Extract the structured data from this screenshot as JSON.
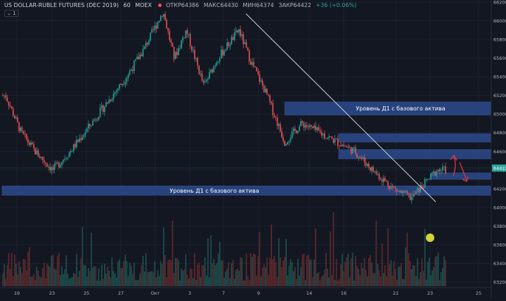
{
  "header": {
    "symbol": "US DOLLAR-RUBLE FUTURES (DEC 2019)",
    "interval": "60",
    "exchange": "MOEX",
    "open": "ОТКР64386",
    "high": "МАКС64430",
    "low": "МИН64374",
    "close": "ЗАКР64422",
    "change": "+36 (+0.06%)",
    "toggle": "1"
  },
  "price_axis": {
    "ticks": [
      "66200",
      "66000",
      "65800",
      "65600",
      "65400",
      "65200",
      "65000",
      "64800",
      "64600",
      "64400",
      "64200",
      "64000",
      "63800",
      "63600",
      "63400",
      "63200"
    ],
    "last_price": "64422",
    "last_price_color": "#26a69a"
  },
  "time_axis": {
    "ticks": [
      "19",
      "23",
      "25",
      "27",
      "Окт",
      "3",
      "7",
      "9",
      "14",
      "16",
      "21",
      "23",
      "25"
    ]
  },
  "zones": [
    {
      "label": "Уровень Д1 с базового актива"
    },
    {
      "label": ""
    },
    {
      "label": ""
    },
    {
      "label": ""
    },
    {
      "label": "Уровень Д1 с базового актива"
    }
  ],
  "colors": {
    "background": "#131722",
    "up": "#26a69a",
    "down": "#ef5350",
    "zone": "#2b4a8c",
    "trendline": "#d1d4dc",
    "arrow": "#e53935",
    "marker": "#d4d43a"
  },
  "chart_data": {
    "type": "candlestick",
    "price_range": [
      63200,
      66200
    ],
    "close_path": [
      {
        "date": "19",
        "price": 65200
      },
      {
        "date": "20",
        "price": 64800
      },
      {
        "date": "23",
        "price": 64600
      },
      {
        "date": "24",
        "price": 64400
      },
      {
        "date": "25",
        "price": 64600
      },
      {
        "date": "26",
        "price": 65000
      },
      {
        "date": "27",
        "price": 65400
      },
      {
        "date": "30",
        "price": 65700
      },
      {
        "date": "Окт",
        "price": 66100
      },
      {
        "date": "2",
        "price": 65600
      },
      {
        "date": "3",
        "price": 65900
      },
      {
        "date": "4",
        "price": 65300
      },
      {
        "date": "7",
        "price": 65600
      },
      {
        "date": "8",
        "price": 65900
      },
      {
        "date": "9",
        "price": 65600
      },
      {
        "date": "10",
        "price": 65200
      },
      {
        "date": "11",
        "price": 64700
      },
      {
        "date": "14",
        "price": 64900
      },
      {
        "date": "15",
        "price": 64800
      },
      {
        "date": "16",
        "price": 64700
      },
      {
        "date": "17",
        "price": 64600
      },
      {
        "date": "18",
        "price": 64400
      },
      {
        "date": "21",
        "price": 64200
      },
      {
        "date": "22",
        "price": 64100
      },
      {
        "date": "23",
        "price": 64400
      }
    ],
    "zones": [
      {
        "low": 64990,
        "high": 65130
      },
      {
        "low": 64700,
        "high": 64790
      },
      {
        "low": 64520,
        "high": 64620
      },
      {
        "low": 64300,
        "high": 64370
      },
      {
        "low": 64130,
        "high": 64230
      }
    ],
    "trendline": {
      "start": {
        "date": "8",
        "price": 66000
      },
      "end": {
        "date": "23",
        "price": 64150
      }
    }
  }
}
